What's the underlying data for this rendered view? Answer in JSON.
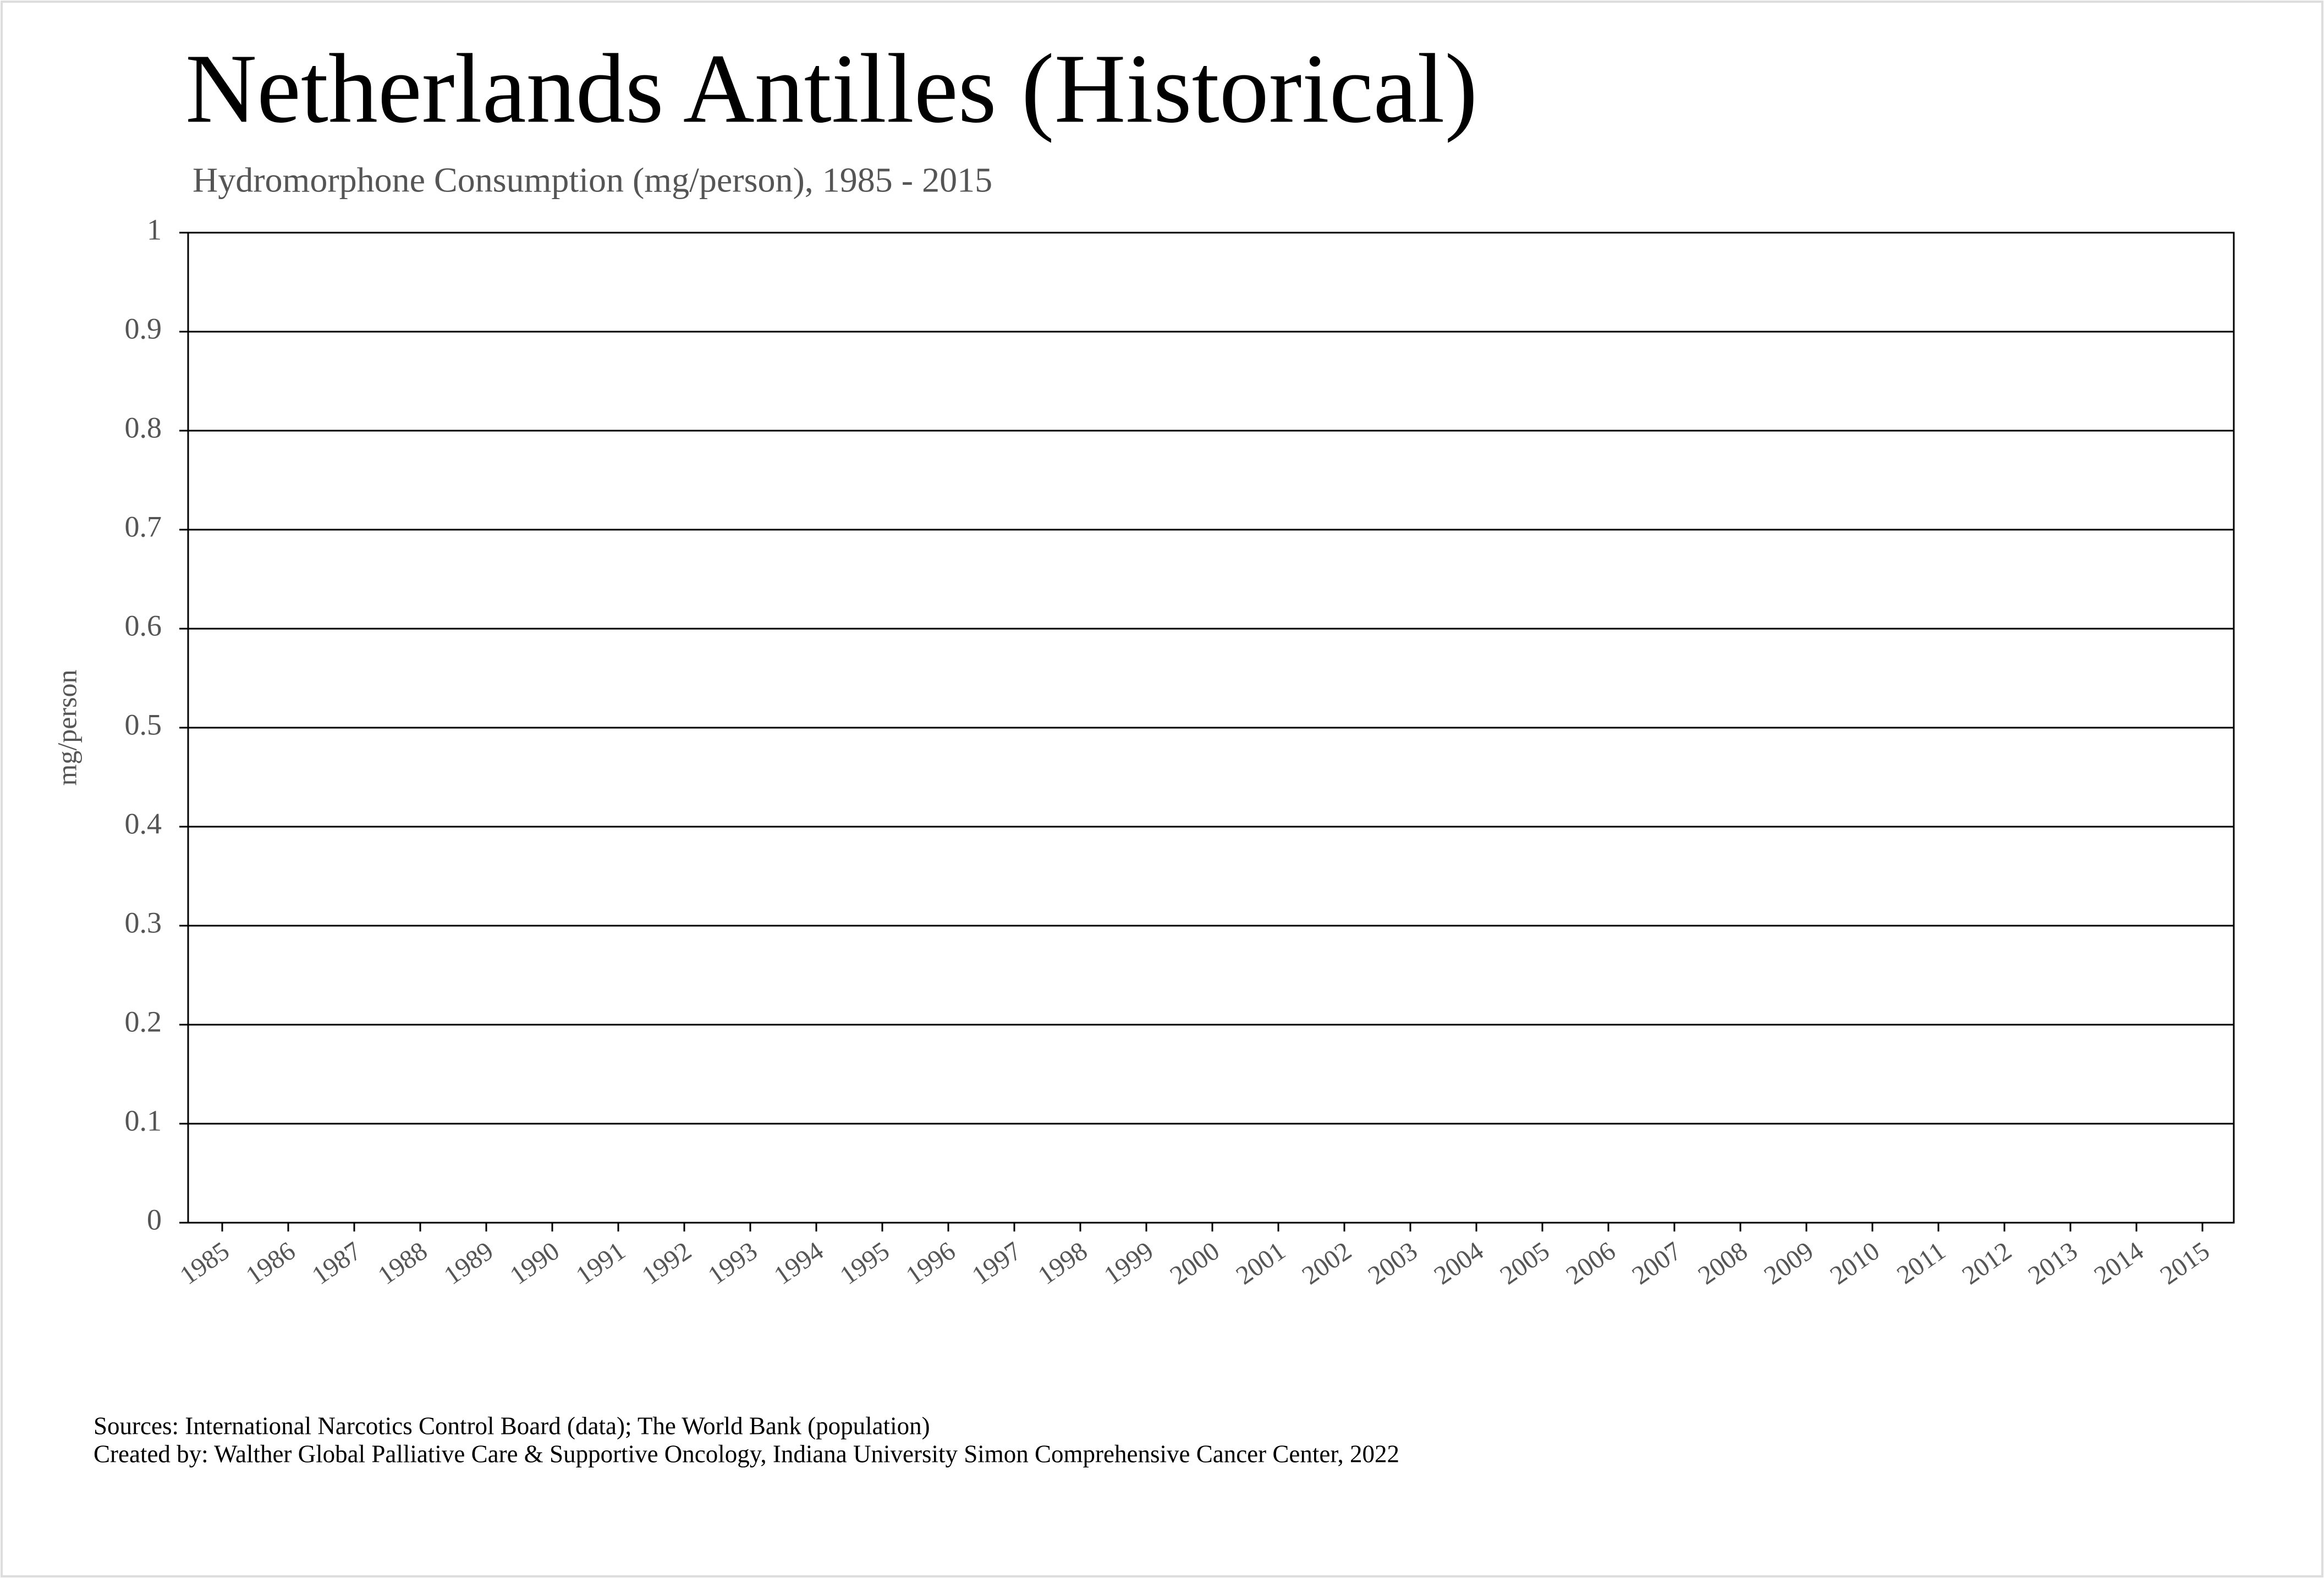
{
  "chart_data": {
    "type": "line",
    "title": "Netherlands Antilles (Historical)",
    "subtitle": "Hydromorphone Consumption (mg/person), 1985 - 2015",
    "y_label": "mg/person",
    "categories": [
      "1985",
      "1986",
      "1987",
      "1988",
      "1989",
      "1990",
      "1991",
      "1992",
      "1993",
      "1994",
      "1995",
      "1996",
      "1997",
      "1998",
      "1999",
      "2000",
      "2001",
      "2002",
      "2003",
      "2004",
      "2005",
      "2006",
      "2007",
      "2008",
      "2009",
      "2010",
      "2011",
      "2012",
      "2013",
      "2014",
      "2015"
    ],
    "series": [],
    "ylim": [
      0,
      1
    ],
    "yticks": [
      0,
      0.1,
      0.2,
      0.3,
      0.4,
      0.5,
      0.6,
      0.7,
      0.8,
      0.9,
      1
    ],
    "grid": true,
    "sources": "Sources: International Narcotics Control Board (data); The World Bank (population)",
    "credits": "Created by: Walther Global Palliative Care & Supportive Oncology, Indiana University Simon Comprehensive Cancer Center, 2022"
  }
}
